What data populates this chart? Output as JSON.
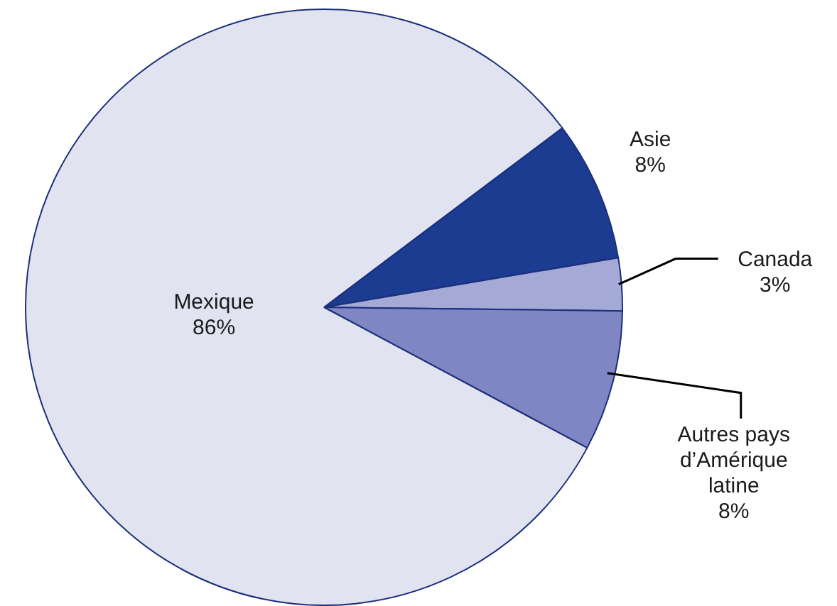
{
  "chart_data": {
    "type": "pie",
    "categories": [
      "Asie",
      "Canada",
      "Autres pays d’Amérique latine",
      "Mexique"
    ],
    "values": [
      8,
      3,
      8,
      86
    ],
    "value_labels": [
      "8%",
      "3%",
      "8%",
      "86%"
    ],
    "colors": [
      "#1b3c91",
      "#a4a9d6",
      "#7f86c3",
      "#e1e3f1"
    ],
    "legend": false
  }
}
